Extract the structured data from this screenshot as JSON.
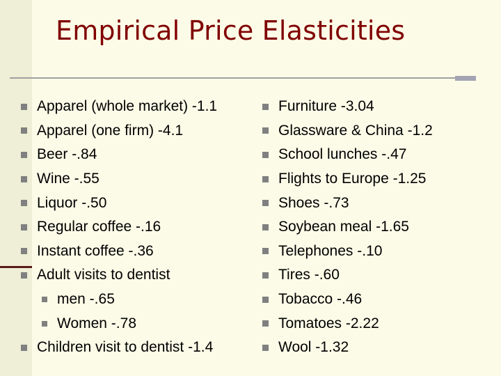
{
  "title": "Empirical Price Elasticities",
  "left_items": [
    {
      "text": "Apparel (whole market) -1.1",
      "level": 1
    },
    {
      "text": "Apparel (one firm) -4.1",
      "level": 1
    },
    {
      "text": "Beer -.84",
      "level": 1
    },
    {
      "text": "Wine -.55",
      "level": 1
    },
    {
      "text": "Liquor -.50",
      "level": 1
    },
    {
      "text": "Regular coffee -.16",
      "level": 1
    },
    {
      "text": "Instant coffee -.36",
      "level": 1
    },
    {
      "text": "Adult visits to dentist",
      "level": 1
    },
    {
      "text": "men -.65",
      "level": 2
    },
    {
      "text": "Women -.78",
      "level": 2
    },
    {
      "text": "Children visit to dentist -1.4",
      "level": 1
    }
  ],
  "right_items": [
    {
      "text": "Furniture -3.04",
      "level": 1
    },
    {
      "text": "Glassware & China -1.2",
      "level": 1
    },
    {
      "text": "School lunches -.47",
      "level": 1
    },
    {
      "text": "Flights to Europe -1.25",
      "level": 1
    },
    {
      "text": "Shoes -.73",
      "level": 1
    },
    {
      "text": "Soybean meal -1.65",
      "level": 1
    },
    {
      "text": "Telephones -.10",
      "level": 1
    },
    {
      "text": "Tires -.60",
      "level": 1
    },
    {
      "text": "Tobacco -.46",
      "level": 1
    },
    {
      "text": "Tomatoes -2.22",
      "level": 1
    },
    {
      "text": "Wool -1.32",
      "level": 1
    }
  ],
  "colors": {
    "title": "#800000",
    "bullet": "#808080",
    "background": "#fcfbe8"
  },
  "icons": {
    "bullet": "square-bullet-icon"
  }
}
